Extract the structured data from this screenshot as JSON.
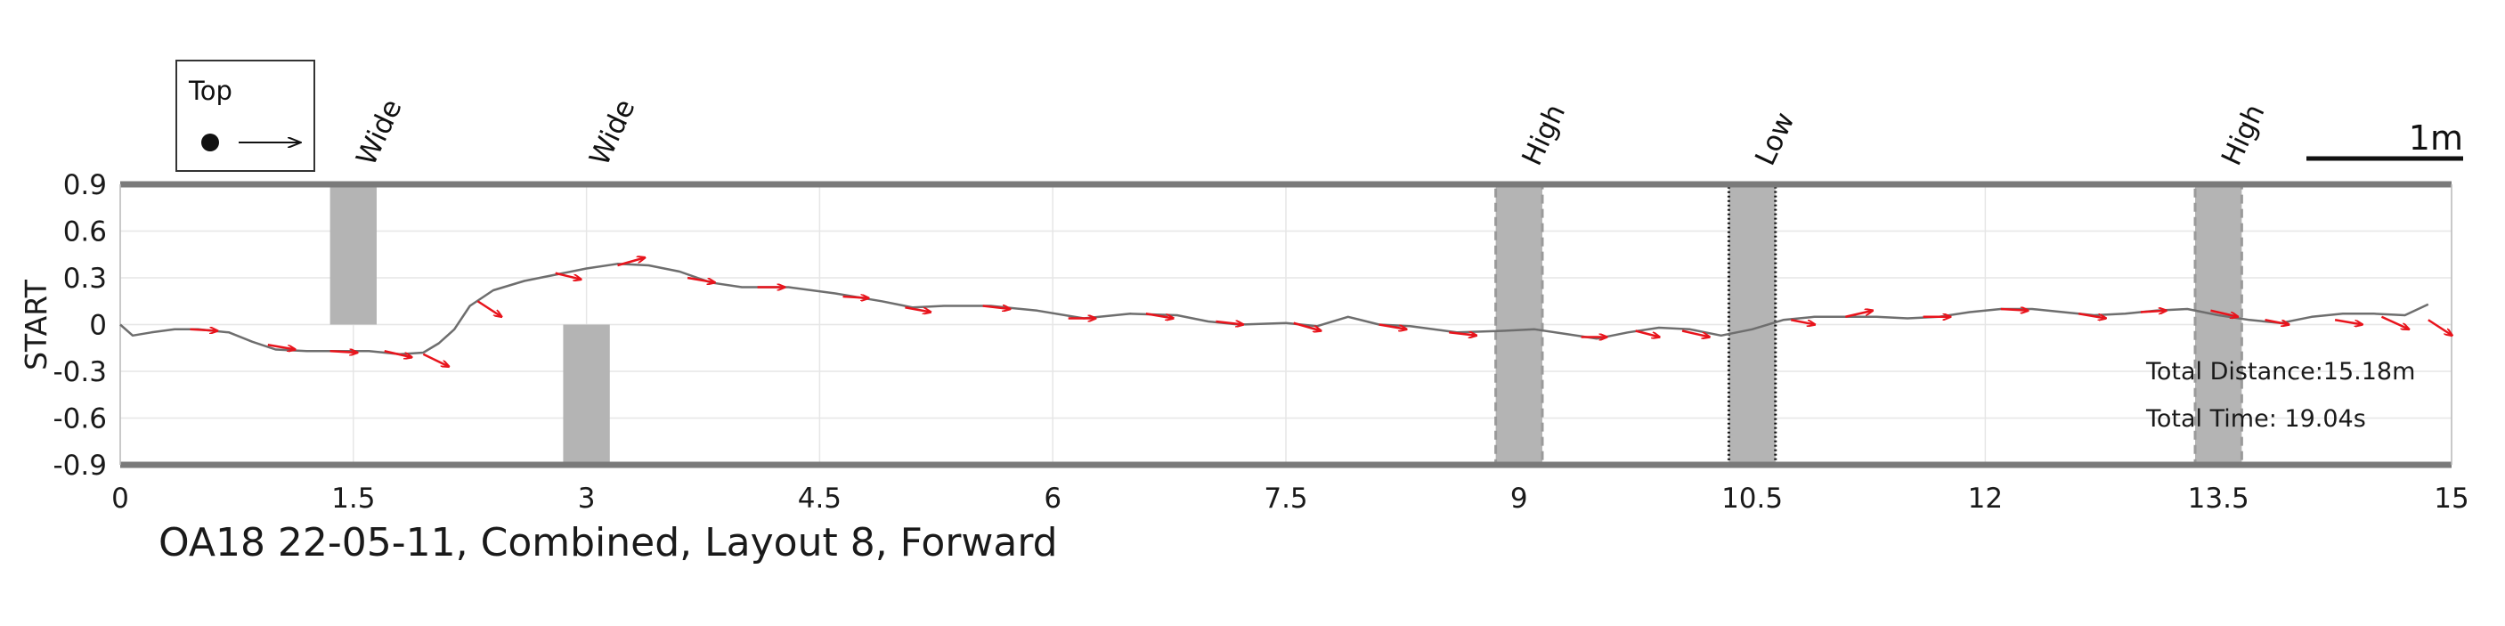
{
  "caption": "OA18 22-05-11, Combined, Layout 8, Forward",
  "legend": {
    "label": "Top"
  },
  "scale_bar": {
    "label": "1m",
    "length": 1
  },
  "info": {
    "distance": "Total Distance:15.18m",
    "time": "Total Time: 19.04s"
  },
  "colors": {
    "path": "#6e6e6e",
    "arrow": "#e8141c",
    "obstacle": "#b4b4b4",
    "border": "#7a7a7a",
    "grid": "#e6e6e6"
  },
  "chart_data": {
    "type": "line",
    "title": "OA18 22-05-11, Combined, Layout 8, Forward",
    "xlabel": "",
    "ylabel": "START",
    "xlim": [
      0,
      15
    ],
    "ylim": [
      -0.9,
      0.9
    ],
    "xticks": [
      "0",
      "1.5",
      "3",
      "4.5",
      "6",
      "7.5",
      "9",
      "10.5",
      "12",
      "13.5",
      "15"
    ],
    "yticks": [
      "0.9",
      "0.6",
      "0.3",
      "0",
      "-0.3",
      "-0.6",
      "-0.9"
    ],
    "grid": true,
    "obstacles": [
      {
        "label": "Wide",
        "x0": 1.35,
        "x1": 1.65,
        "y0": 0.0,
        "y1": 0.9,
        "style": "solid"
      },
      {
        "label": "Wide",
        "x0": 2.85,
        "x1": 3.15,
        "y0": -0.9,
        "y1": 0.0,
        "style": "solid"
      },
      {
        "label": "High",
        "x0": 8.85,
        "x1": 9.15,
        "y0": -0.9,
        "y1": 0.9,
        "style": "dashed"
      },
      {
        "label": "Low",
        "x0": 10.35,
        "x1": 10.65,
        "y0": -0.9,
        "y1": 0.9,
        "style": "dotted"
      },
      {
        "label": "High",
        "x0": 13.35,
        "x1": 13.65,
        "y0": -0.9,
        "y1": 0.9,
        "style": "dashed"
      }
    ],
    "series": [
      {
        "x": [
          0,
          0.08,
          0.2,
          0.35,
          0.5,
          0.7,
          0.85,
          1.0,
          1.2,
          1.4,
          1.6,
          1.8,
          1.95,
          2.05,
          2.15,
          2.25,
          2.4,
          2.6,
          2.8,
          3.0,
          3.2,
          3.4,
          3.6,
          3.8,
          4.0,
          4.3,
          4.6,
          4.9,
          5.1,
          5.3,
          5.6,
          5.9,
          6.2,
          6.5,
          6.8,
          7.0,
          7.2,
          7.5,
          7.7,
          7.9,
          8.1,
          8.3,
          8.6,
          8.9,
          9.1,
          9.3,
          9.5,
          9.7,
          9.9,
          10.1,
          10.3,
          10.5,
          10.7,
          10.9,
          11.1,
          11.3,
          11.5,
          11.7,
          11.9,
          12.1,
          12.3,
          12.5,
          12.7,
          12.9,
          13.1,
          13.3,
          13.5,
          13.7,
          13.9,
          14.1,
          14.3,
          14.5,
          14.7,
          14.85
        ],
        "y": [
          0.0,
          -0.07,
          -0.05,
          -0.03,
          -0.03,
          -0.05,
          -0.11,
          -0.16,
          -0.17,
          -0.17,
          -0.17,
          -0.19,
          -0.18,
          -0.12,
          -0.03,
          0.12,
          0.22,
          0.28,
          0.32,
          0.36,
          0.39,
          0.38,
          0.34,
          0.27,
          0.24,
          0.24,
          0.2,
          0.15,
          0.11,
          0.12,
          0.12,
          0.09,
          0.04,
          0.07,
          0.06,
          0.02,
          0.0,
          0.01,
          -0.01,
          0.05,
          0.0,
          -0.01,
          -0.05,
          -0.04,
          -0.03,
          -0.06,
          -0.09,
          -0.05,
          -0.02,
          -0.03,
          -0.07,
          -0.03,
          0.03,
          0.05,
          0.05,
          0.05,
          0.04,
          0.05,
          0.08,
          0.1,
          0.1,
          0.08,
          0.06,
          0.07,
          0.09,
          0.1,
          0.06,
          0.03,
          0.01,
          0.05,
          0.07,
          0.07,
          0.06,
          0.13
        ]
      }
    ],
    "arrows": [
      {
        "x": 0.45,
        "y": -0.03,
        "dx": 0.32,
        "dy": -0.01
      },
      {
        "x": 0.95,
        "y": -0.13,
        "dx": 0.32,
        "dy": -0.03
      },
      {
        "x": 1.35,
        "y": -0.17,
        "dx": 0.32,
        "dy": -0.01
      },
      {
        "x": 1.7,
        "y": -0.17,
        "dx": 0.32,
        "dy": -0.04
      },
      {
        "x": 1.95,
        "y": -0.19,
        "dx": 0.3,
        "dy": -0.08
      },
      {
        "x": 2.3,
        "y": 0.15,
        "dx": 0.28,
        "dy": -0.1
      },
      {
        "x": 2.8,
        "y": 0.33,
        "dx": 0.3,
        "dy": -0.04
      },
      {
        "x": 3.2,
        "y": 0.38,
        "dx": 0.32,
        "dy": 0.05
      },
      {
        "x": 3.65,
        "y": 0.3,
        "dx": 0.32,
        "dy": -0.03
      },
      {
        "x": 4.1,
        "y": 0.24,
        "dx": 0.32,
        "dy": 0.0
      },
      {
        "x": 4.65,
        "y": 0.18,
        "dx": 0.3,
        "dy": -0.01
      },
      {
        "x": 5.05,
        "y": 0.11,
        "dx": 0.3,
        "dy": -0.03
      },
      {
        "x": 5.55,
        "y": 0.12,
        "dx": 0.32,
        "dy": -0.02
      },
      {
        "x": 6.1,
        "y": 0.04,
        "dx": 0.32,
        "dy": 0.0
      },
      {
        "x": 6.6,
        "y": 0.07,
        "dx": 0.32,
        "dy": -0.03
      },
      {
        "x": 7.05,
        "y": 0.02,
        "dx": 0.32,
        "dy": -0.02
      },
      {
        "x": 7.55,
        "y": 0.01,
        "dx": 0.32,
        "dy": -0.05
      },
      {
        "x": 8.1,
        "y": 0.0,
        "dx": 0.32,
        "dy": -0.03
      },
      {
        "x": 8.55,
        "y": -0.05,
        "dx": 0.32,
        "dy": -0.02
      },
      {
        "x": 9.4,
        "y": -0.08,
        "dx": 0.3,
        "dy": 0.0
      },
      {
        "x": 9.75,
        "y": -0.04,
        "dx": 0.28,
        "dy": -0.04
      },
      {
        "x": 10.05,
        "y": -0.04,
        "dx": 0.32,
        "dy": -0.04
      },
      {
        "x": 10.75,
        "y": 0.03,
        "dx": 0.28,
        "dy": -0.03
      },
      {
        "x": 11.1,
        "y": 0.05,
        "dx": 0.32,
        "dy": 0.04
      },
      {
        "x": 11.6,
        "y": 0.05,
        "dx": 0.32,
        "dy": 0.0
      },
      {
        "x": 12.1,
        "y": 0.1,
        "dx": 0.32,
        "dy": -0.01
      },
      {
        "x": 12.6,
        "y": 0.07,
        "dx": 0.32,
        "dy": -0.03
      },
      {
        "x": 13.0,
        "y": 0.08,
        "dx": 0.3,
        "dy": 0.01
      },
      {
        "x": 13.45,
        "y": 0.09,
        "dx": 0.32,
        "dy": -0.04
      },
      {
        "x": 13.8,
        "y": 0.03,
        "dx": 0.28,
        "dy": -0.03
      },
      {
        "x": 14.25,
        "y": 0.03,
        "dx": 0.32,
        "dy": -0.03
      },
      {
        "x": 14.55,
        "y": 0.05,
        "dx": 0.32,
        "dy": -0.08
      },
      {
        "x": 14.85,
        "y": 0.03,
        "dx": 0.28,
        "dy": -0.1
      }
    ]
  }
}
